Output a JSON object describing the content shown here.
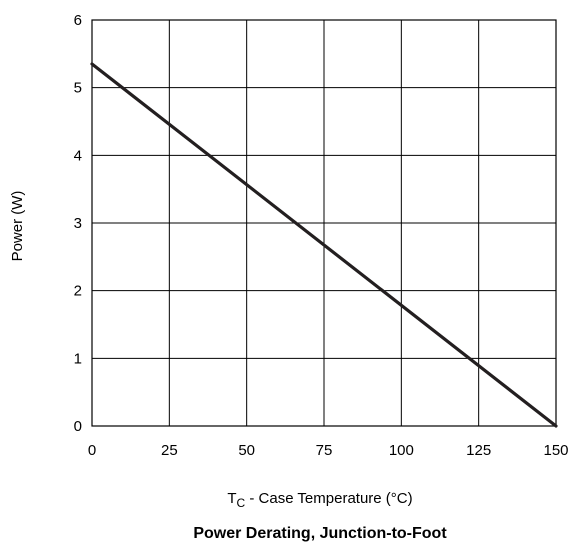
{
  "chart_data": {
    "type": "line",
    "title": "Power Derating, Junction-to-Foot",
    "xlabel": {
      "main": "T",
      "subscript": "C",
      "rest": " - Case Temperature (°C)"
    },
    "ylabel": "Power (W)",
    "xlim": [
      0,
      150
    ],
    "ylim": [
      0,
      6
    ],
    "xticks": [
      "0",
      "25",
      "50",
      "75",
      "100",
      "125",
      "150"
    ],
    "yticks": [
      "0",
      "1",
      "2",
      "3",
      "4",
      "5",
      "6"
    ],
    "grid": true,
    "series": [
      {
        "x": [
          0,
          150
        ],
        "y": [
          5.35,
          0
        ],
        "color": "#231f20"
      }
    ]
  }
}
